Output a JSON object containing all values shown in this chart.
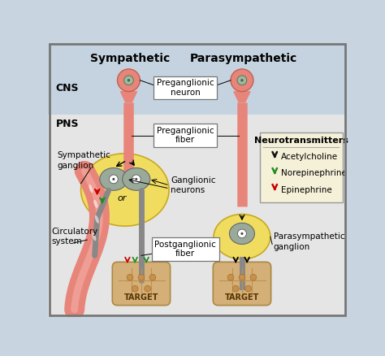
{
  "title_sympathetic": "Sympathetic",
  "title_parasympathetic": "Parasympathetic",
  "label_cns": "CNS",
  "label_pns": "PNS",
  "label_preganglionic_neuron": "Preganglionic\nneuron",
  "label_preganglionic_fiber": "Preganglionic\nfiber",
  "label_sympathetic_ganglion": "Sympathetic\nganglion",
  "label_ganglionic_neurons": "Ganglionic\nneurons",
  "label_circulatory_system": "Circulatory\nsystem",
  "label_postganglionic_fiber": "Postganglionic\nfiber",
  "label_parasympathetic_ganglion": "Parasympathetic\nganglion",
  "label_target": "TARGET",
  "label_or": "or",
  "legend_title": "Neurotransmitters",
  "legend_items": [
    "Acetylcholine",
    "Norepinephrine",
    "Epinephrine"
  ],
  "legend_colors": [
    "#111111",
    "#228B22",
    "#CC0000"
  ],
  "bg_color": "#c8d4e0",
  "cns_bg": "#c5d3e0",
  "pns_bg": "#e8e8e8",
  "neuron_color": "#e8857a",
  "axon_color": "#e8857a",
  "ganglion_fill": "#f0dd60",
  "ganglion_cell_fill": "#9aaa9a",
  "ganglion_cell_edge": "#666666",
  "target_fill": "#d4b078",
  "target_edge": "#aa8840",
  "postganglionic_color": "#888888",
  "circ_color": "#e8857a",
  "border_color": "#666666",
  "label_box_bg": "#ffffff",
  "legend_bg": "#f5f0d8"
}
